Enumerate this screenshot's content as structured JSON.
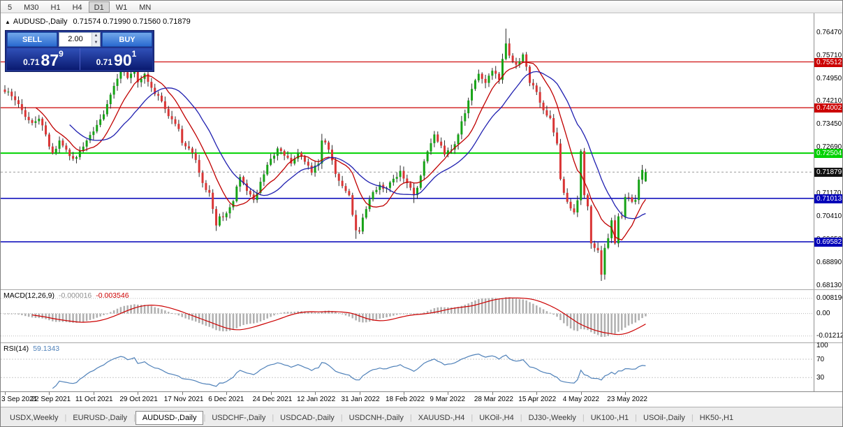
{
  "toolbar": {
    "timeframes": [
      "5",
      "M30",
      "H1",
      "H4",
      "D1",
      "W1",
      "MN"
    ],
    "active": "D1"
  },
  "chart": {
    "title_symbol": "AUDUSD-,Daily",
    "ohlc_text": "0.71574 0.71990 0.71560 0.71879",
    "toggle_icon": "▲",
    "trade_panel": {
      "sell_label": "SELL",
      "buy_label": "BUY",
      "lot": "2.00",
      "spin_up": "▲",
      "spin_down": "▼",
      "bid_small": "0.71",
      "bid_big": "87",
      "bid_sup": "9",
      "ask_small": "0.71",
      "ask_big": "90",
      "ask_sup": "1"
    }
  },
  "chart_data": {
    "type": "candlestick",
    "symbol": "AUDUSD-",
    "timeframe": "Daily",
    "title": "AUDUSD-,Daily 0.71574 0.71990 0.71560 0.71879",
    "bars": 189,
    "last_ohlc": {
      "open": 0.71574,
      "high": 0.7199,
      "low": 0.7156,
      "close": 0.71879
    },
    "current_price": "0.71879",
    "up_color": "#17a317",
    "down_color": "#d93535",
    "wick_color": "#2b2b2b",
    "keypoints": [
      [
        0,
        0.7452
      ],
      [
        2,
        0.7438
      ],
      [
        4,
        0.7412
      ],
      [
        6,
        0.737
      ],
      [
        8,
        0.735
      ],
      [
        10,
        0.7364
      ],
      [
        12,
        0.7312
      ],
      [
        14,
        0.725
      ],
      [
        16,
        0.7292
      ],
      [
        18,
        0.7262
      ],
      [
        20,
        0.7232
      ],
      [
        22,
        0.7258
      ],
      [
        24,
        0.7292
      ],
      [
        26,
        0.7322
      ],
      [
        28,
        0.7362
      ],
      [
        30,
        0.7412
      ],
      [
        32,
        0.7472
      ],
      [
        34,
        0.7524
      ],
      [
        36,
        0.7498
      ],
      [
        38,
        0.7536
      ],
      [
        39,
        0.7484
      ],
      [
        41,
        0.7512
      ],
      [
        43,
        0.7466
      ],
      [
        45,
        0.744
      ],
      [
        47,
        0.7396
      ],
      [
        49,
        0.7362
      ],
      [
        51,
        0.733
      ],
      [
        52,
        0.7284
      ],
      [
        54,
        0.7266
      ],
      [
        56,
        0.7228
      ],
      [
        58,
        0.7152
      ],
      [
        60,
        0.712
      ],
      [
        62,
        0.7012
      ],
      [
        63,
        0.7042
      ],
      [
        65,
        0.7052
      ],
      [
        67,
        0.7092
      ],
      [
        69,
        0.7172
      ],
      [
        71,
        0.7126
      ],
      [
        73,
        0.7096
      ],
      [
        75,
        0.7156
      ],
      [
        77,
        0.7212
      ],
      [
        78,
        0.7232
      ],
      [
        80,
        0.7266
      ],
      [
        82,
        0.7242
      ],
      [
        84,
        0.7216
      ],
      [
        86,
        0.7252
      ],
      [
        88,
        0.7222
      ],
      [
        90,
        0.7186
      ],
      [
        92,
        0.7216
      ],
      [
        93,
        0.7292
      ],
      [
        95,
        0.7262
      ],
      [
        97,
        0.7182
      ],
      [
        99,
        0.7142
      ],
      [
        101,
        0.7112
      ],
      [
        103,
        0.6996
      ],
      [
        104,
        0.6992
      ],
      [
        106,
        0.7066
      ],
      [
        108,
        0.7122
      ],
      [
        110,
        0.7146
      ],
      [
        112,
        0.7136
      ],
      [
        114,
        0.7166
      ],
      [
        116,
        0.7192
      ],
      [
        118,
        0.7152
      ],
      [
        120,
        0.7112
      ],
      [
        122,
        0.7176
      ],
      [
        124,
        0.7256
      ],
      [
        126,
        0.7312
      ],
      [
        129,
        0.7246
      ],
      [
        131,
        0.7262
      ],
      [
        133,
        0.7312
      ],
      [
        135,
        0.7382
      ],
      [
        137,
        0.7462
      ],
      [
        139,
        0.7512
      ],
      [
        141,
        0.7482
      ],
      [
        143,
        0.7522
      ],
      [
        145,
        0.7492
      ],
      [
        147,
        0.7612
      ],
      [
        148,
        0.7572
      ],
      [
        150,
        0.7542
      ],
      [
        152,
        0.7576
      ],
      [
        154,
        0.7482
      ],
      [
        156,
        0.7452
      ],
      [
        158,
        0.7392
      ],
      [
        160,
        0.7366
      ],
      [
        162,
        0.7282
      ],
      [
        163,
        0.7165
      ],
      [
        165,
        0.709
      ],
      [
        167,
        0.7055
      ],
      [
        168,
        0.7095
      ],
      [
        169,
        0.7257
      ],
      [
        170,
        0.7112
      ],
      [
        171,
        0.7075
      ],
      [
        172,
        0.6953
      ],
      [
        173,
        0.6938
      ],
      [
        174,
        0.693
      ],
      [
        175,
        0.685
      ],
      [
        176,
        0.6938
      ],
      [
        177,
        0.697
      ],
      [
        178,
        0.7029
      ],
      [
        179,
        0.6953
      ],
      [
        180,
        0.7042
      ],
      [
        181,
        0.704
      ],
      [
        182,
        0.7106
      ],
      [
        183,
        0.7105
      ],
      [
        184,
        0.709
      ],
      [
        185,
        0.7096
      ],
      [
        186,
        0.7163
      ],
      [
        187,
        0.7195
      ],
      [
        188,
        0.71879
      ]
    ],
    "spikes": [
      {
        "i": 38,
        "high": 0.7556
      },
      {
        "i": 62,
        "low": 0.6994
      },
      {
        "i": 93,
        "high": 0.7314
      },
      {
        "i": 103,
        "low": 0.6968
      },
      {
        "i": 120,
        "low": 0.7086
      },
      {
        "i": 147,
        "high": 0.7661
      },
      {
        "i": 175,
        "low": 0.6829
      }
    ],
    "noise": 0.0009,
    "seed": 1234567,
    "wick_min": 0.0004,
    "wick_max": 0.0018,
    "ma": [
      {
        "period": 10,
        "color": "#c00000"
      },
      {
        "period": 20,
        "color": "#2020b0"
      }
    ],
    "levels": [
      {
        "price": "0.75512",
        "color": "#cc0000",
        "width": 1.2
      },
      {
        "price": "0.74002",
        "color": "#cc0000",
        "width": 1.2
      },
      {
        "price": "0.72504",
        "color": "#00d200",
        "width": 2
      },
      {
        "price": "0.71013",
        "color": "#0000b8",
        "width": 1.5
      },
      {
        "price": "0.69582",
        "color": "#0000b8",
        "width": 1.5
      }
    ],
    "price_axis": {
      "ticks": [
        "0.76470",
        "0.75710",
        "0.74950",
        "0.74210",
        "0.73450",
        "0.72690",
        "0.71170",
        "0.70410",
        "0.69650",
        "0.68890",
        "0.68130"
      ]
    },
    "label_step": 13,
    "x_labels": [
      "3 Sep 2021",
      "22 Sep 2021",
      "11 Oct 2021",
      "29 Oct 2021",
      "17 Nov 2021",
      "6 Dec 2021",
      "24 Dec 2021",
      "12 Jan 2022",
      "31 Jan 2022",
      "18 Feb 2022",
      "9 Mar 2022",
      "28 Mar 2022",
      "15 Apr 2022",
      "4 May 2022",
      "23 May 2022"
    ],
    "macd": {
      "label": "MACD(12,26,9)",
      "value_main": "-0.000016",
      "value_signal": "-0.003546",
      "fast": 12,
      "slow": 26,
      "signal": 9,
      "ticks": [
        "0.008190",
        "0.00",
        "-0.01212"
      ],
      "tick_values": [
        0.00819,
        0,
        -0.01212
      ],
      "range_max": 0.0127,
      "range_min": -0.0156
    },
    "rsi": {
      "label": "RSI(14)",
      "value": "59.1343",
      "period": 14,
      "levels": [
        100,
        70,
        30
      ],
      "range_max": 105
    }
  },
  "tabs": {
    "items": [
      "USDX,Weekly",
      "EURUSD-,Daily",
      "AUDUSD-,Daily",
      "USDCHF-,Daily",
      "USDCAD-,Daily",
      "USDCNH-,Daily",
      "XAUUSD-,H4",
      "UKOil-,H4",
      "DJ30-,Weekly",
      "UK100-,H1",
      "USOil-,Daily",
      "HK50-,H1"
    ],
    "active_index": 2
  }
}
